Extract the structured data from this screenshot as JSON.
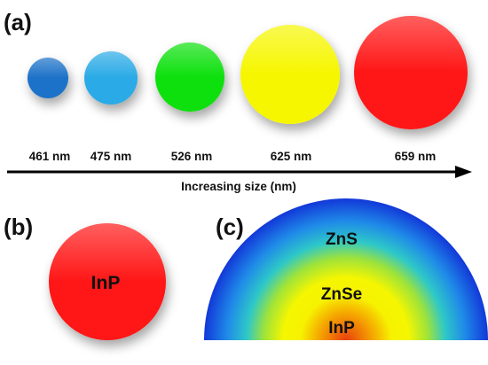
{
  "panels": {
    "a": {
      "label": "(a)"
    },
    "b": {
      "label": "(b)"
    },
    "c": {
      "label": "(c)"
    }
  },
  "dots": [
    {
      "wavelength": "461 nm",
      "color": "#1a72c8"
    },
    {
      "wavelength": "475 nm",
      "color": "#29aae6"
    },
    {
      "wavelength": "526 nm",
      "color": "#11e011"
    },
    {
      "wavelength": "625 nm",
      "color": "#f6f600"
    },
    {
      "wavelength": "659 nm",
      "color": "#ff1414"
    }
  ],
  "size_axis": {
    "label": "Increasing size (nm)"
  },
  "core": {
    "label": "InP",
    "color": "#ff1414"
  },
  "shell_layers": [
    {
      "label": "ZnS",
      "color": "#1a5be0"
    },
    {
      "label": "ZnSe",
      "color": "#f5f500"
    },
    {
      "label": "InP",
      "color": "#f07a10"
    }
  ]
}
